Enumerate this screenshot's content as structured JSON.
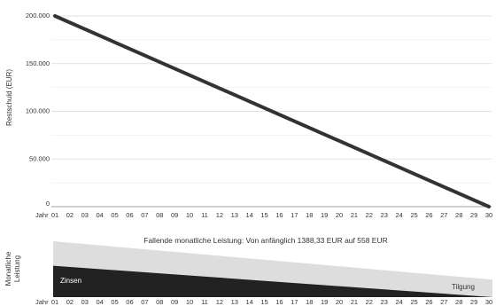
{
  "chart_data": [
    {
      "type": "line",
      "ylabel": "Restschuld (EUR)",
      "x_prefix": "Jahr",
      "x": [
        1,
        30
      ],
      "series": [
        {
          "values": [
            200000,
            0
          ]
        }
      ],
      "ylim": [
        0,
        200000
      ],
      "yticks": [
        "0",
        "50.000",
        "100.000",
        "150.000",
        "200.000"
      ],
      "yticks_values": [
        0,
        50000,
        100000,
        150000,
        200000
      ],
      "xticks": [
        "01",
        "02",
        "03",
        "04",
        "05",
        "06",
        "07",
        "08",
        "09",
        "10",
        "11",
        "12",
        "13",
        "14",
        "15",
        "16",
        "17",
        "18",
        "19",
        "20",
        "21",
        "22",
        "23",
        "24",
        "25",
        "26",
        "27",
        "28",
        "29",
        "30"
      ],
      "grid": true,
      "colors": {
        "line": "#333333",
        "grid": "#d9d9d9"
      }
    },
    {
      "type": "area",
      "title": "Fallende monatliche Leistung: Von anfänglich 1388,33 EUR auf 558 EUR",
      "ylabel": "Monatliche Leistung",
      "x_prefix": "Jahr",
      "xticks": [
        "01",
        "02",
        "03",
        "04",
        "05",
        "06",
        "07",
        "08",
        "09",
        "10",
        "11",
        "12",
        "13",
        "14",
        "15",
        "16",
        "17",
        "18",
        "19",
        "20",
        "21",
        "22",
        "23",
        "24",
        "25",
        "26",
        "27",
        "28",
        "29",
        "30"
      ],
      "series": [
        {
          "name": "Zinsen",
          "values": [
            833.33,
            0
          ]
        },
        {
          "name": "Tilgung",
          "values": [
            555,
            558
          ]
        }
      ],
      "colors": {
        "Zinsen": "#222222",
        "Tilgung": "#dddddd"
      }
    }
  ]
}
